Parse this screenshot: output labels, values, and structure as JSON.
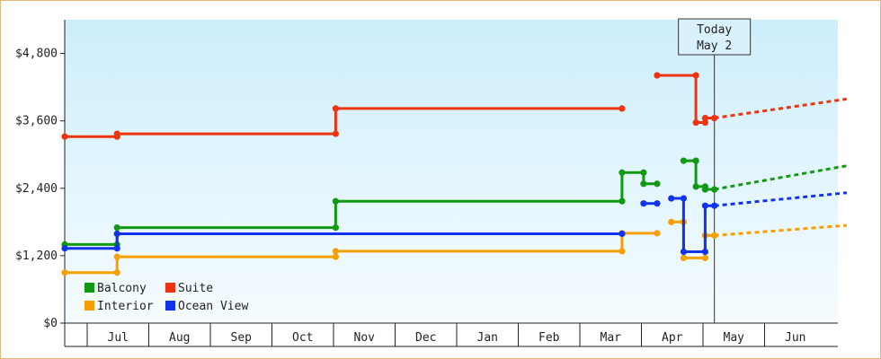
{
  "chart_data": {
    "type": "line",
    "title": "",
    "xlabel": "",
    "ylabel": "",
    "ylim": [
      0,
      5400
    ],
    "y_ticks": [
      0,
      1200,
      2400,
      3600,
      4800
    ],
    "y_tick_labels": [
      "$0",
      "$1,200",
      "$2,400",
      "$3,600",
      "$4,800"
    ],
    "x_months": [
      "Jul",
      "Aug",
      "Sep",
      "Oct",
      "Nov",
      "Dec",
      "Jan",
      "Feb",
      "Mar",
      "Apr",
      "May",
      "Jun"
    ],
    "today_marker": {
      "line1": "Today",
      "line2": "May 2",
      "x": 10.55
    },
    "grid": false,
    "legend_position": "bottom-left",
    "series": [
      {
        "name": "Balcony",
        "color": "#119911",
        "segments": [
          {
            "style": "solid",
            "points": [
              [
                0,
                1400
              ],
              [
                0.85,
                1400
              ],
              [
                0.85,
                1700
              ],
              [
                4.4,
                1700
              ],
              [
                4.4,
                2170
              ],
              [
                9.05,
                2170
              ],
              [
                9.05,
                2680
              ],
              [
                9.4,
                2680
              ],
              [
                9.4,
                2480
              ],
              [
                9.62,
                2480
              ]
            ]
          },
          {
            "style": "solid",
            "points": [
              [
                10.05,
                2890
              ],
              [
                10.25,
                2890
              ],
              [
                10.25,
                2430
              ],
              [
                10.4,
                2430
              ],
              [
                10.4,
                2380
              ],
              [
                10.55,
                2380
              ]
            ]
          },
          {
            "style": "dashed",
            "points": [
              [
                10.55,
                2380
              ],
              [
                12.7,
                2800
              ]
            ]
          }
        ]
      },
      {
        "name": "Suite",
        "color": "#ee3311",
        "segments": [
          {
            "style": "solid",
            "points": [
              [
                0,
                3320
              ],
              [
                0.85,
                3320
              ],
              [
                0.85,
                3370
              ],
              [
                4.4,
                3370
              ],
              [
                4.4,
                3820
              ],
              [
                9.05,
                3820
              ]
            ]
          },
          {
            "style": "solid",
            "points": [
              [
                9.62,
                4410
              ],
              [
                10.25,
                4410
              ],
              [
                10.25,
                3570
              ],
              [
                10.4,
                3570
              ],
              [
                10.4,
                3650
              ],
              [
                10.55,
                3650
              ]
            ]
          },
          {
            "style": "dashed",
            "points": [
              [
                10.55,
                3650
              ],
              [
                12.7,
                3990
              ]
            ]
          }
        ]
      },
      {
        "name": "Interior",
        "color": "#f5a000",
        "segments": [
          {
            "style": "solid",
            "points": [
              [
                0,
                900
              ],
              [
                0.85,
                900
              ],
              [
                0.85,
                1180
              ],
              [
                4.4,
                1180
              ],
              [
                4.4,
                1280
              ],
              [
                9.05,
                1280
              ],
              [
                9.05,
                1600
              ],
              [
                9.62,
                1600
              ]
            ]
          },
          {
            "style": "solid",
            "points": [
              [
                9.85,
                1800
              ],
              [
                10.05,
                1800
              ],
              [
                10.05,
                1160
              ],
              [
                10.4,
                1160
              ],
              [
                10.4,
                1560
              ],
              [
                10.55,
                1560
              ]
            ]
          },
          {
            "style": "dashed",
            "points": [
              [
                10.55,
                1560
              ],
              [
                12.7,
                1740
              ]
            ]
          }
        ]
      },
      {
        "name": "Ocean View",
        "color": "#1133ee",
        "segments": [
          {
            "style": "solid",
            "points": [
              [
                0,
                1330
              ],
              [
                0.85,
                1330
              ],
              [
                0.85,
                1590
              ],
              [
                9.05,
                1590
              ]
            ]
          },
          {
            "style": "solid",
            "points": [
              [
                9.4,
                2130
              ],
              [
                9.62,
                2130
              ]
            ]
          },
          {
            "style": "solid",
            "points": [
              [
                9.85,
                2220
              ],
              [
                10.05,
                2220
              ],
              [
                10.05,
                1270
              ],
              [
                10.4,
                1270
              ],
              [
                10.4,
                2090
              ],
              [
                10.55,
                2090
              ]
            ]
          },
          {
            "style": "dashed",
            "points": [
              [
                10.55,
                2090
              ],
              [
                12.7,
                2320
              ]
            ]
          }
        ]
      }
    ]
  }
}
